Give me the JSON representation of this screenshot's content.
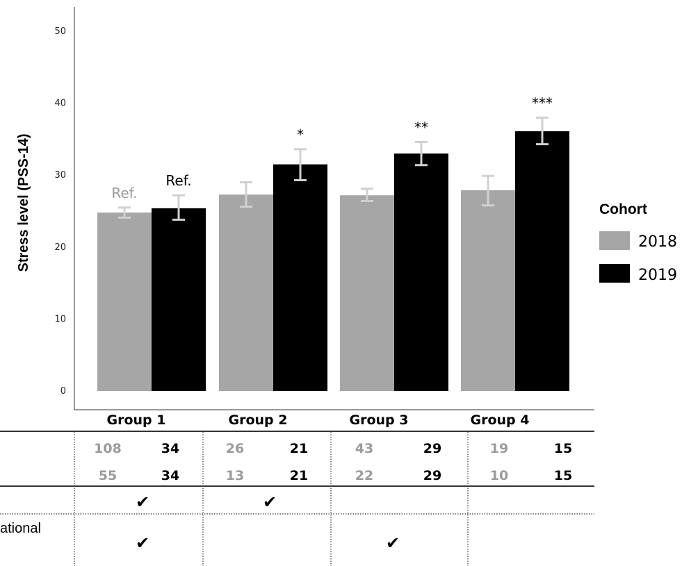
{
  "colors": {
    "c2018": "#a6a6a6",
    "c2019": "#000000",
    "error_bar": "#d0d0d0",
    "ref_gray": "#9b9b9b"
  },
  "chart_data": {
    "type": "bar",
    "ylabel": "Stress level (PSS-14)",
    "ylim": [
      0,
      52
    ],
    "yticks": [
      0,
      10,
      20,
      30,
      40,
      50
    ],
    "categories": [
      "Group 1",
      "Group 2",
      "Group 3",
      "Group 4"
    ],
    "legend_title": "Cohort",
    "legend_placement": "right",
    "series": [
      {
        "name": "2018",
        "color": "#a6a6a6",
        "values": [
          24.8,
          27.3,
          27.2,
          27.9
        ],
        "err_low": [
          24.1,
          25.6,
          26.4,
          25.8
        ],
        "err_high": [
          25.5,
          29.0,
          28.1,
          29.9
        ]
      },
      {
        "name": "2019",
        "color": "#000000",
        "values": [
          25.4,
          31.5,
          33.0,
          36.1
        ],
        "err_low": [
          23.8,
          29.3,
          31.4,
          34.3
        ],
        "err_high": [
          27.2,
          33.6,
          34.6,
          38.0
        ]
      }
    ],
    "annotations": {
      "2018": [
        "Ref.",
        "",
        "",
        ""
      ],
      "2019": [
        "Ref.",
        "*",
        "**",
        "***"
      ]
    }
  },
  "table": {
    "row_label_3": "ational",
    "n_row1": [
      [
        "108",
        "34"
      ],
      [
        "26",
        "21"
      ],
      [
        "43",
        "29"
      ],
      [
        "19",
        "15"
      ]
    ],
    "n_row2": [
      [
        "55",
        "34"
      ],
      [
        "13",
        "21"
      ],
      [
        "22",
        "29"
      ],
      [
        "10",
        "15"
      ]
    ],
    "check_row1": [
      true,
      true,
      false,
      false
    ],
    "check_row2": [
      true,
      false,
      true,
      false
    ],
    "check_glyph": "✔"
  }
}
